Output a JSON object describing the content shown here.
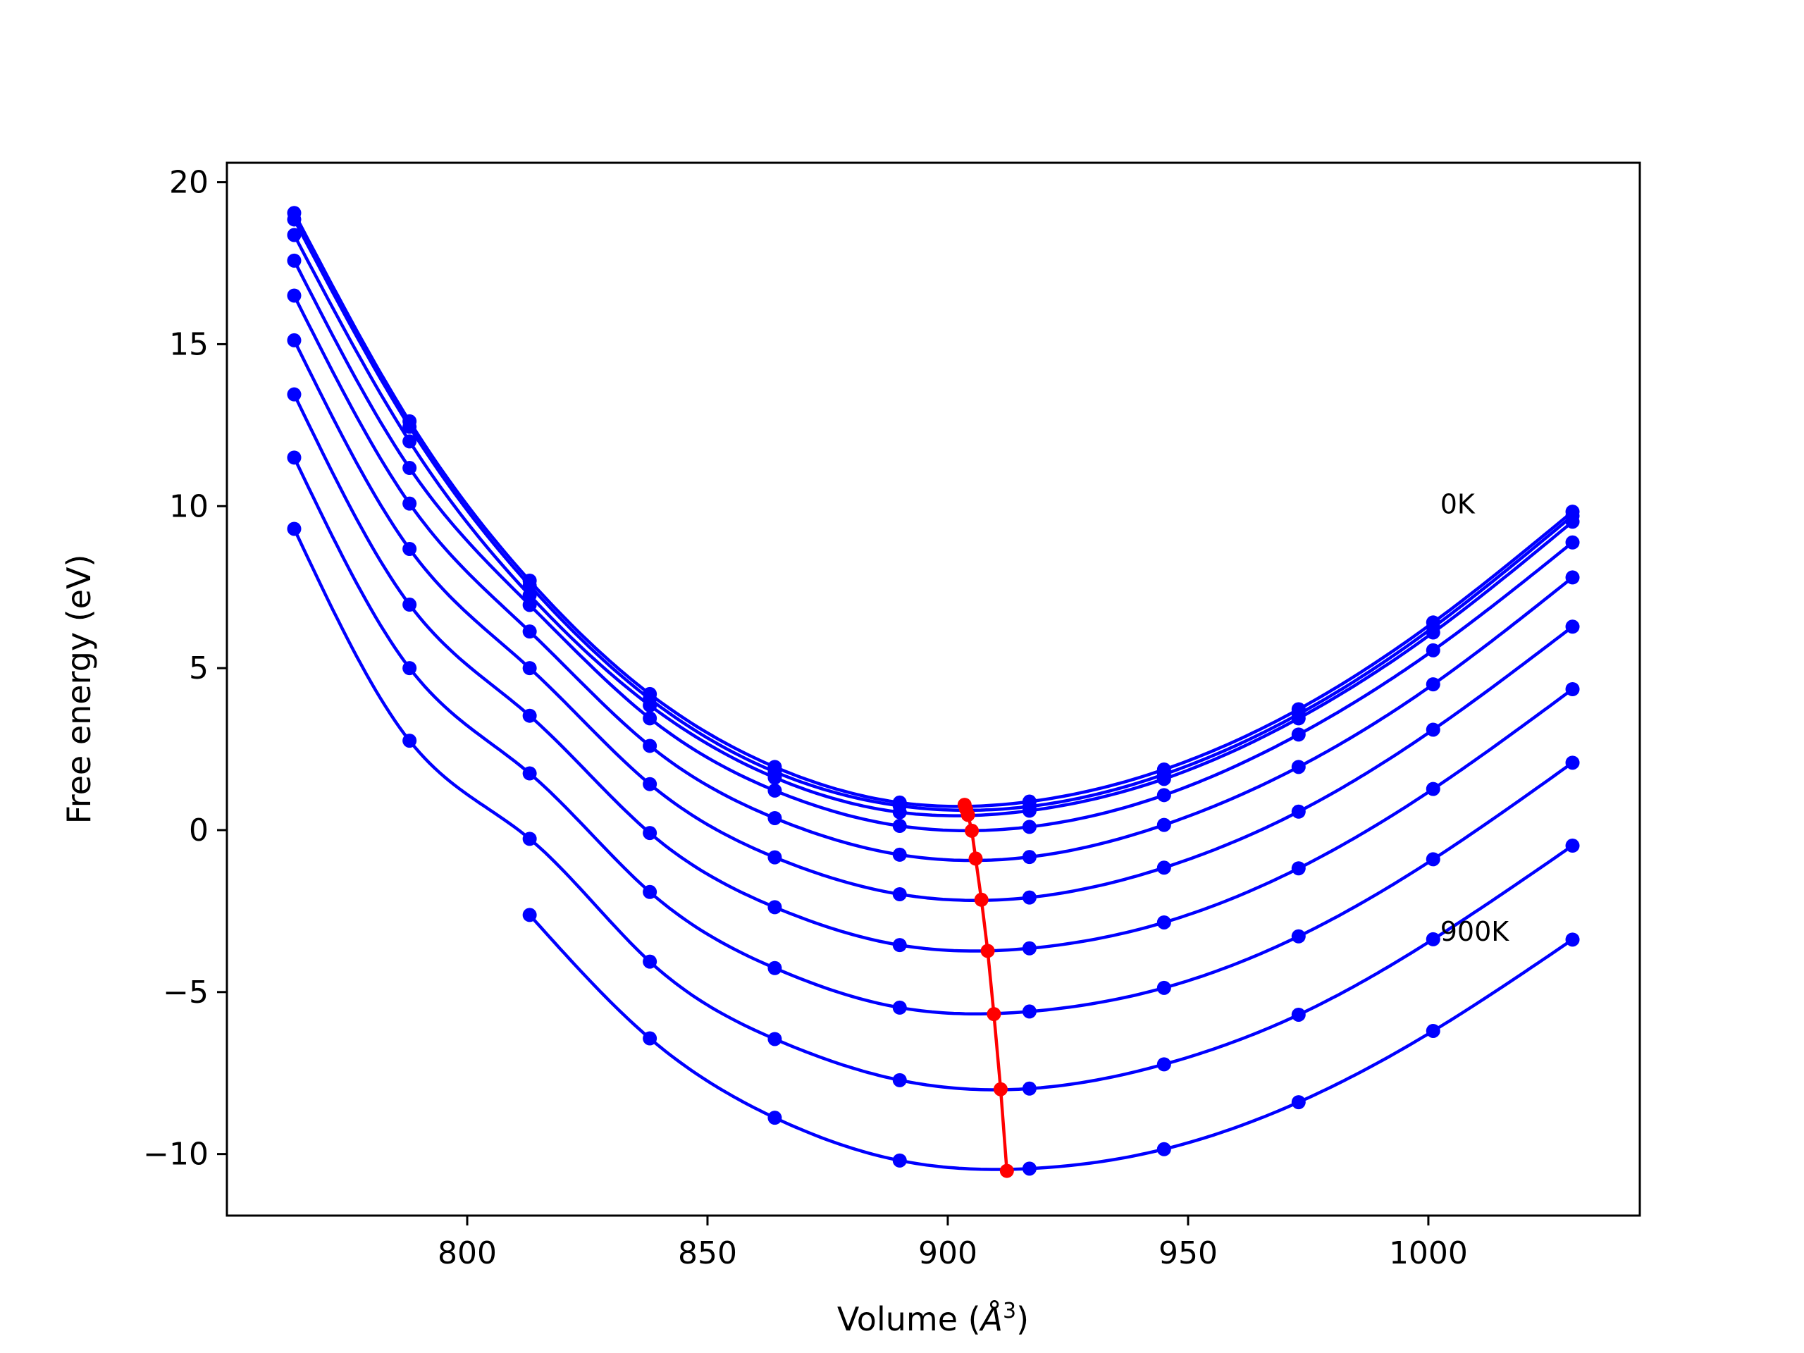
{
  "chart_data": {
    "type": "line",
    "title": "",
    "xlabel": "Volume (",
    "xlabel_unit": "Å",
    "xlabel_sup": "3",
    "xlabel_close": ")",
    "ylabel": "Free energy (eV)",
    "xlim": [
      750,
      1044
    ],
    "ylim": [
      -11.9,
      20.6
    ],
    "xticks": [
      800,
      850,
      900,
      950,
      1000
    ],
    "xtick_labels": [
      "800",
      "850",
      "900",
      "950",
      "1000"
    ],
    "yticks": [
      -10,
      -5,
      0,
      5,
      10,
      15,
      20
    ],
    "ytick_labels": [
      "−10",
      "−5",
      "0",
      "5",
      "10",
      "15",
      "20"
    ],
    "grid": false,
    "x": [
      764,
      788,
      813,
      838,
      864,
      890,
      917,
      945,
      973,
      1001,
      1030
    ],
    "series_color": "#0000ff",
    "min_line_color": "#ff0000",
    "series": [
      {
        "values": [
          19.05,
          12.62,
          7.7,
          4.2,
          1.95,
          0.85,
          0.88,
          1.87,
          3.73,
          6.41,
          9.83
        ]
      },
      {
        "values": [
          18.85,
          12.45,
          7.55,
          4.05,
          1.8,
          0.75,
          0.73,
          1.72,
          3.58,
          6.26,
          9.7
        ]
      },
      {
        "values": [
          18.37,
          12.0,
          7.25,
          3.85,
          1.62,
          0.55,
          0.6,
          1.58,
          3.45,
          6.1,
          9.52
        ]
      },
      {
        "values": [
          17.58,
          11.18,
          6.95,
          3.45,
          1.22,
          0.13,
          0.1,
          1.08,
          2.95,
          5.55,
          8.88
        ]
      },
      {
        "values": [
          16.5,
          10.08,
          6.13,
          2.6,
          0.37,
          -0.76,
          -0.83,
          0.16,
          1.95,
          4.5,
          7.8
        ]
      },
      {
        "values": [
          15.12,
          8.68,
          5.0,
          1.42,
          -0.84,
          -1.98,
          -2.08,
          -1.16,
          0.57,
          3.1,
          6.28
        ]
      },
      {
        "values": [
          13.45,
          6.96,
          3.53,
          -0.09,
          -2.38,
          -3.55,
          -3.65,
          -2.85,
          -1.18,
          1.27,
          4.35
        ]
      },
      {
        "values": [
          11.5,
          5.0,
          1.75,
          -1.91,
          -4.26,
          -5.48,
          -5.6,
          -4.87,
          -3.28,
          -0.9,
          2.08
        ]
      },
      {
        "values": [
          9.3,
          2.76,
          -0.27,
          -4.06,
          -6.45,
          -7.72,
          -7.98,
          -7.23,
          -5.7,
          -3.37,
          -0.48
        ]
      },
      {
        "values": [
          null,
          null,
          -2.62,
          -6.43,
          -8.88,
          -10.2,
          -10.45,
          -9.85,
          -8.4,
          -6.2,
          -3.38
        ]
      }
    ],
    "minima": {
      "x": [
        903.5,
        903.8,
        904.2,
        905.0,
        905.8,
        907.0,
        908.3,
        909.6,
        911.0
      ],
      "y": [
        0.78,
        0.65,
        0.47,
        -0.02,
        -0.88,
        -2.15,
        -3.73,
        -5.68,
        -8.0
      ]
    },
    "minima_extra": {
      "x": 912.3,
      "y": -10.52
    },
    "annotations": [
      {
        "text": "0K",
        "x": 1001,
        "y": 10.0
      },
      {
        "text": "900K",
        "x": 1001,
        "y": -3.2
      }
    ]
  }
}
